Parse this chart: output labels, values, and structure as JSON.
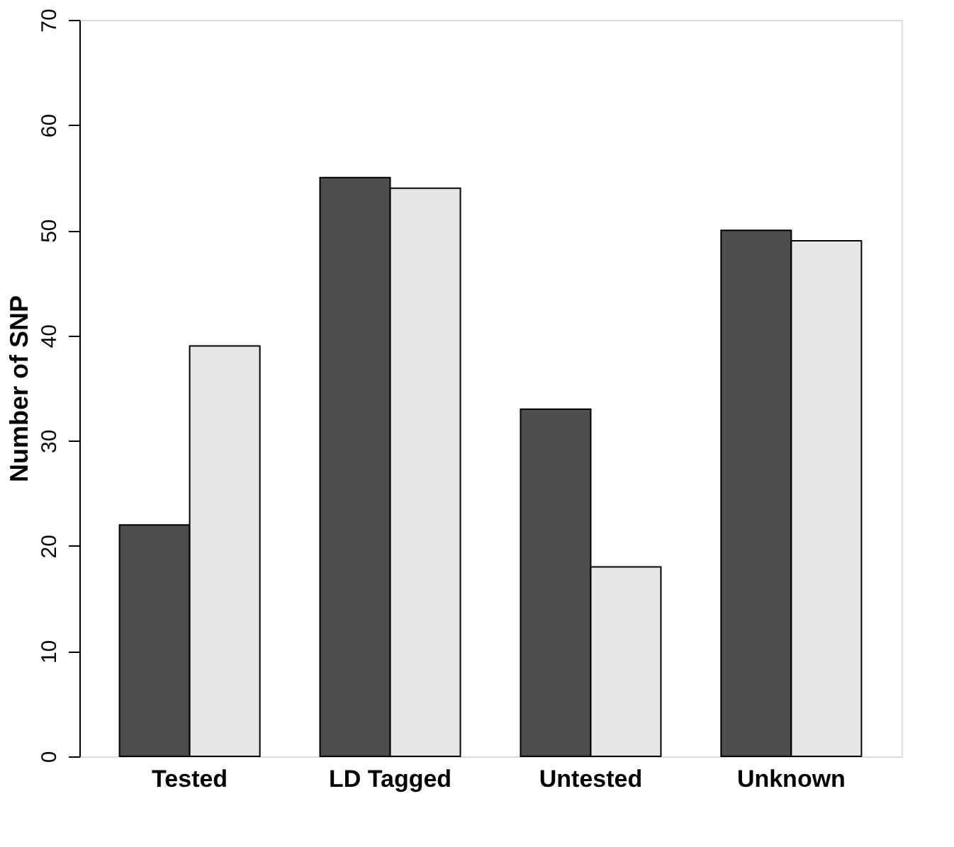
{
  "chart_data": {
    "type": "bar",
    "ylabel": "Number of SNP",
    "categories": [
      "Tested",
      "LD Tagged",
      "Untested",
      "Unknown"
    ],
    "series": [
      {
        "color": "#4d4d4d",
        "values": [
          22,
          55,
          33,
          50
        ]
      },
      {
        "color": "#e6e6e6",
        "values": [
          39,
          54,
          18,
          49
        ]
      }
    ],
    "ylim": [
      0,
      70
    ],
    "yticks": [
      0,
      10,
      20,
      30,
      40,
      50,
      60,
      70
    ],
    "grid": false,
    "legend": false
  }
}
